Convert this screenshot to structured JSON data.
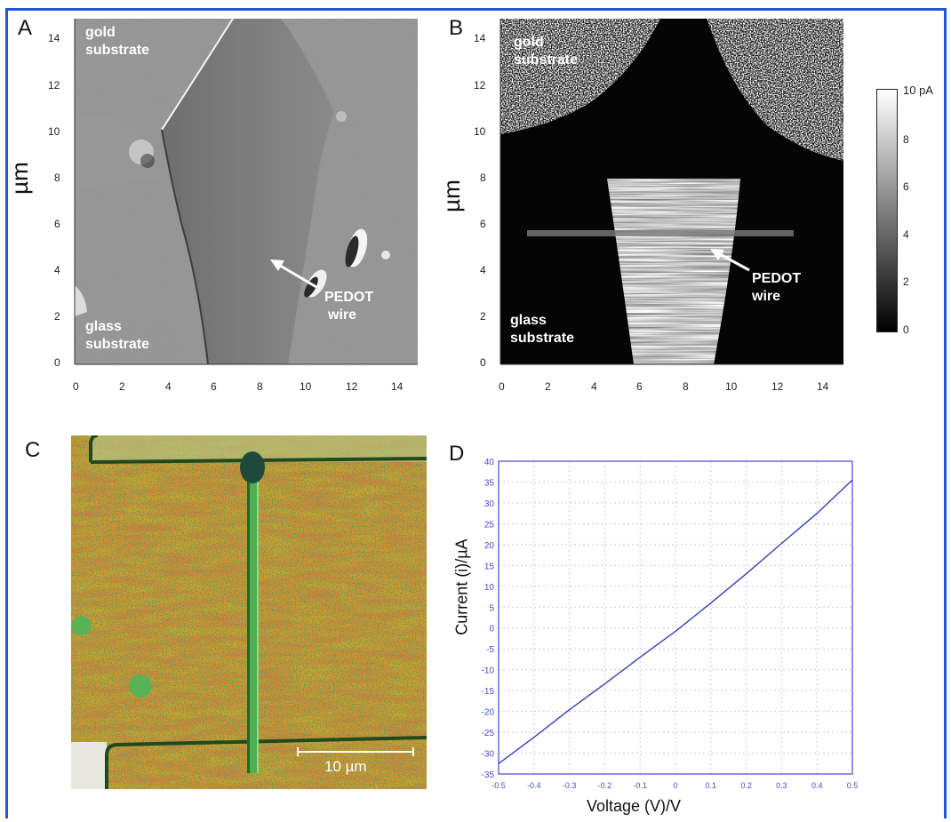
{
  "figure": {
    "frame_color": "#1f57d6",
    "panels": {
      "A": {
        "label": "A",
        "y_title": "µm",
        "x_ticks": [
          "0",
          "2",
          "4",
          "6",
          "8",
          "10",
          "12",
          "14"
        ],
        "y_ticks": [
          "14",
          "12",
          "10",
          "8",
          "6",
          "4",
          "2",
          "0"
        ],
        "annotations": {
          "gold": "gold",
          "gold2": "substrate",
          "glass": "glass",
          "glass2": "substrate",
          "pedot": "PEDOT",
          "pedot2": "wire"
        }
      },
      "B": {
        "label": "B",
        "y_title": "µm",
        "x_ticks": [
          "0",
          "2",
          "4",
          "6",
          "8",
          "10",
          "12",
          "14"
        ],
        "y_ticks": [
          "14",
          "12",
          "10",
          "8",
          "6",
          "4",
          "2",
          "0"
        ],
        "annotations": {
          "gold": "gold",
          "gold2": "substrate",
          "glass": "glass",
          "glass2": "substrate",
          "pedot": "PEDOT",
          "pedot2": "wire"
        },
        "colorbar": {
          "ticks": [
            "10 pA",
            "8",
            "6",
            "4",
            "2",
            "0"
          ]
        }
      },
      "C": {
        "label": "C",
        "scale_bar": "10 µm"
      },
      "D": {
        "label": "D",
        "x_title": "Voltage (V)/V",
        "y_title": "Current (i)/µA"
      }
    }
  },
  "chart_data": {
    "type": "line",
    "xlabel": "Voltage (V)/V",
    "ylabel": "Current (i)/µA",
    "xlim": [
      -0.5,
      0.5
    ],
    "ylim": [
      -35,
      40
    ],
    "x_ticks": [
      -0.5,
      -0.4,
      -0.3,
      -0.2,
      -0.1,
      0,
      0.1,
      0.2,
      0.3,
      0.4,
      0.5
    ],
    "y_ticks": [
      -35,
      -30,
      -25,
      -20,
      -15,
      -10,
      -5,
      0,
      5,
      10,
      15,
      20,
      25,
      30,
      35,
      40
    ],
    "grid": true,
    "line_color": "#3b3bbf",
    "series": [
      {
        "x": [
          -0.5,
          -0.4,
          -0.3,
          -0.2,
          -0.1,
          0,
          0.1,
          0.2,
          0.3,
          0.4,
          0.5
        ],
        "values": [
          -32.5,
          -26.2,
          -19.6,
          -13.4,
          -7.0,
          -0.8,
          6.0,
          13.0,
          20.3,
          27.5,
          35.5
        ]
      }
    ]
  }
}
